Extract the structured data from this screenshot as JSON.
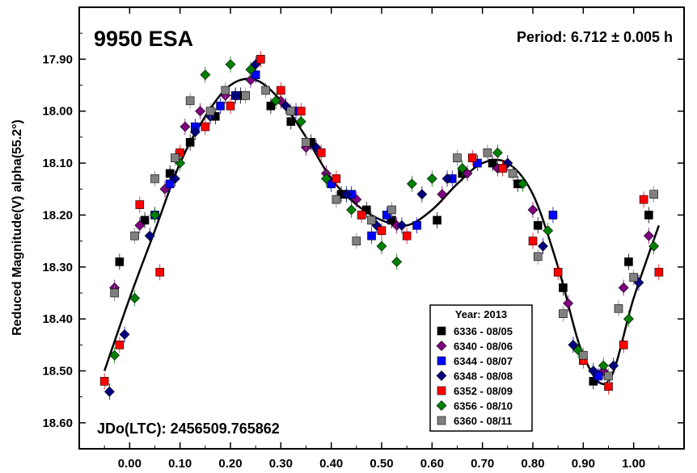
{
  "chart_data": {
    "type": "scatter",
    "title": "9950 ESA",
    "period_label": "Period: 6.712 ± 0.005 h",
    "jd_label": "JDo(LTC): 2456509.765862",
    "ylabel": "Reduced Magnitude(V) alpha(55.2°)",
    "xlabel": "",
    "xlim": [
      -0.1,
      1.1
    ],
    "ylim": [
      18.65,
      17.8
    ],
    "y_inverted": true,
    "x_ticks": [
      "0.00",
      "0.10",
      "0.20",
      "0.30",
      "0.40",
      "0.50",
      "0.60",
      "0.70",
      "0.80",
      "0.90",
      "1.00"
    ],
    "y_ticks": [
      "17.90",
      "18.00",
      "18.10",
      "18.20",
      "18.30",
      "18.40",
      "18.50",
      "18.60"
    ],
    "legend": {
      "title": "Year: 2013",
      "position": "bottom-center-right",
      "entries": [
        {
          "label": "6336 - 08/05",
          "color": "#000000",
          "marker": "square"
        },
        {
          "label": "6340 - 08/06",
          "color": "#800080",
          "marker": "diamond"
        },
        {
          "label": "6344 - 08/07",
          "color": "#0000ff",
          "marker": "square"
        },
        {
          "label": "6348 - 08/08",
          "color": "#000080",
          "marker": "diamond"
        },
        {
          "label": "6352 - 08/09",
          "color": "#ff0000",
          "marker": "square"
        },
        {
          "label": "6356 - 08/10",
          "color": "#008000",
          "marker": "diamond"
        },
        {
          "label": "6360 - 08/11",
          "color": "#808080",
          "marker": "square"
        }
      ]
    },
    "fit_curve": {
      "x": [
        -0.05,
        0.0,
        0.05,
        0.1,
        0.15,
        0.2,
        0.25,
        0.3,
        0.35,
        0.4,
        0.45,
        0.5,
        0.55,
        0.6,
        0.65,
        0.7,
        0.75,
        0.8,
        0.85,
        0.9,
        0.95,
        1.0,
        1.05
      ],
      "y": [
        18.5,
        18.36,
        18.23,
        18.1,
        18.01,
        17.95,
        17.94,
        17.98,
        18.05,
        18.13,
        18.18,
        18.21,
        18.22,
        18.19,
        18.14,
        18.1,
        18.1,
        18.16,
        18.3,
        18.47,
        18.52,
        18.36,
        18.22
      ]
    },
    "series": [
      {
        "name": "6336 - 08/05",
        "points": [
          [
            -0.02,
            18.29
          ],
          [
            0.03,
            18.21
          ],
          [
            0.08,
            18.12
          ],
          [
            0.12,
            18.06
          ],
          [
            0.17,
            18.01
          ],
          [
            0.22,
            17.97
          ],
          [
            0.28,
            17.99
          ],
          [
            0.32,
            18.02
          ],
          [
            0.36,
            18.06
          ],
          [
            0.42,
            18.16
          ],
          [
            0.47,
            18.19
          ],
          [
            0.52,
            18.21
          ],
          [
            0.61,
            18.21
          ],
          [
            0.66,
            18.12
          ],
          [
            0.72,
            18.1
          ],
          [
            0.77,
            18.14
          ],
          [
            0.81,
            18.22
          ],
          [
            0.86,
            18.34
          ],
          [
            0.92,
            18.52
          ],
          [
            0.99,
            18.29
          ],
          [
            1.03,
            18.2
          ]
        ]
      },
      {
        "name": "6340 - 08/06",
        "points": [
          [
            -0.03,
            18.34
          ],
          [
            0.02,
            18.22
          ],
          [
            0.07,
            18.15
          ],
          [
            0.11,
            18.03
          ],
          [
            0.14,
            18.0
          ],
          [
            0.19,
            17.97
          ],
          [
            0.24,
            17.94
          ],
          [
            0.3,
            17.98
          ],
          [
            0.35,
            18.07
          ],
          [
            0.39,
            18.12
          ],
          [
            0.45,
            18.17
          ],
          [
            0.53,
            18.22
          ],
          [
            0.62,
            18.16
          ],
          [
            0.67,
            18.12
          ],
          [
            0.73,
            18.11
          ],
          [
            0.8,
            18.19
          ],
          [
            0.87,
            18.37
          ],
          [
            0.94,
            18.5
          ],
          [
            0.98,
            18.34
          ],
          [
            1.03,
            18.24
          ]
        ]
      },
      {
        "name": "6344 - 08/07",
        "points": [
          [
            0.05,
            18.2
          ],
          [
            0.08,
            18.14
          ],
          [
            0.13,
            18.03
          ],
          [
            0.18,
            17.99
          ],
          [
            0.21,
            17.97
          ],
          [
            0.25,
            17.93
          ],
          [
            0.33,
            18.0
          ],
          [
            0.4,
            18.14
          ],
          [
            0.44,
            18.16
          ],
          [
            0.48,
            18.24
          ],
          [
            0.51,
            18.2
          ],
          [
            0.57,
            18.22
          ],
          [
            0.64,
            18.13
          ],
          [
            0.69,
            18.1
          ],
          [
            0.84,
            18.2
          ],
          [
            0.93,
            18.51
          ]
        ]
      },
      {
        "name": "6348 - 08/08",
        "points": [
          [
            -0.04,
            18.54
          ],
          [
            -0.01,
            18.43
          ],
          [
            0.04,
            18.24
          ],
          [
            0.09,
            18.13
          ],
          [
            0.13,
            18.04
          ],
          [
            0.16,
            18.01
          ],
          [
            0.21,
            17.97
          ],
          [
            0.25,
            17.91
          ],
          [
            0.31,
            17.99
          ],
          [
            0.37,
            18.07
          ],
          [
            0.43,
            18.16
          ],
          [
            0.49,
            18.22
          ],
          [
            0.54,
            18.22
          ],
          [
            0.58,
            18.16
          ],
          [
            0.63,
            18.13
          ],
          [
            0.75,
            18.1
          ],
          [
            0.82,
            18.26
          ],
          [
            0.88,
            18.45
          ],
          [
            0.92,
            18.5
          ],
          [
            0.96,
            18.49
          ],
          [
            1.01,
            18.33
          ]
        ]
      },
      {
        "name": "6352 - 08/09",
        "points": [
          [
            -0.05,
            18.52
          ],
          [
            -0.02,
            18.45
          ],
          [
            0.02,
            18.18
          ],
          [
            0.06,
            18.31
          ],
          [
            0.1,
            18.08
          ],
          [
            0.15,
            18.03
          ],
          [
            0.2,
            17.99
          ],
          [
            0.26,
            17.9
          ],
          [
            0.3,
            17.96
          ],
          [
            0.34,
            18.0
          ],
          [
            0.38,
            18.08
          ],
          [
            0.41,
            18.13
          ],
          [
            0.46,
            18.2
          ],
          [
            0.5,
            18.23
          ],
          [
            0.55,
            18.24
          ],
          [
            0.68,
            18.09
          ],
          [
            0.74,
            18.11
          ],
          [
            0.8,
            18.25
          ],
          [
            0.85,
            18.31
          ],
          [
            0.9,
            18.48
          ],
          [
            0.95,
            18.53
          ],
          [
            0.98,
            18.45
          ],
          [
            1.02,
            18.17
          ],
          [
            1.05,
            18.31
          ]
        ]
      },
      {
        "name": "6356 - 08/10",
        "points": [
          [
            -0.03,
            18.47
          ],
          [
            0.01,
            18.36
          ],
          [
            0.05,
            18.2
          ],
          [
            0.1,
            18.1
          ],
          [
            0.15,
            17.93
          ],
          [
            0.2,
            17.91
          ],
          [
            0.24,
            17.92
          ],
          [
            0.29,
            17.98
          ],
          [
            0.34,
            18.02
          ],
          [
            0.39,
            18.13
          ],
          [
            0.44,
            18.19
          ],
          [
            0.5,
            18.26
          ],
          [
            0.53,
            18.29
          ],
          [
            0.56,
            18.14
          ],
          [
            0.6,
            18.13
          ],
          [
            0.66,
            18.11
          ],
          [
            0.73,
            18.08
          ],
          [
            0.78,
            18.14
          ],
          [
            0.83,
            18.23
          ],
          [
            0.89,
            18.46
          ],
          [
            0.94,
            18.49
          ],
          [
            0.99,
            18.4
          ],
          [
            1.04,
            18.26
          ]
        ]
      },
      {
        "name": "6360 - 08/11",
        "points": [
          [
            -0.03,
            18.35
          ],
          [
            0.01,
            18.24
          ],
          [
            0.05,
            18.13
          ],
          [
            0.09,
            18.09
          ],
          [
            0.12,
            17.98
          ],
          [
            0.16,
            18.0
          ],
          [
            0.19,
            17.96
          ],
          [
            0.23,
            17.97
          ],
          [
            0.27,
            17.96
          ],
          [
            0.32,
            18.0
          ],
          [
            0.35,
            18.06
          ],
          [
            0.41,
            18.17
          ],
          [
            0.45,
            18.25
          ],
          [
            0.48,
            18.21
          ],
          [
            0.52,
            18.19
          ],
          [
            0.65,
            18.09
          ],
          [
            0.71,
            18.08
          ],
          [
            0.76,
            18.12
          ],
          [
            0.81,
            18.28
          ],
          [
            0.86,
            18.39
          ],
          [
            0.9,
            18.47
          ],
          [
            0.95,
            18.51
          ],
          [
            0.97,
            18.38
          ],
          [
            1.0,
            18.32
          ],
          [
            1.04,
            18.16
          ]
        ]
      }
    ]
  }
}
